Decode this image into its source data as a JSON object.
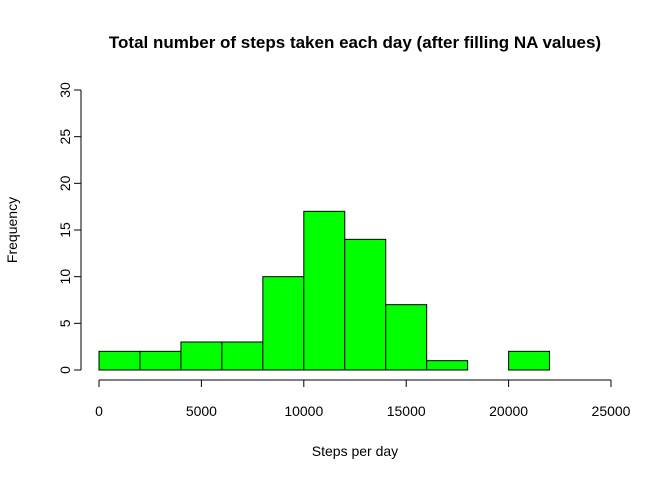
{
  "chart_data": {
    "type": "bar",
    "title": "Total number of steps taken each day (after filling NA values)",
    "xlabel": "Steps per day",
    "ylabel": "Frequency",
    "bar_color": "#00ff00",
    "border_color": "#000000",
    "bins": [
      {
        "start": 0,
        "end": 2000,
        "count": 2
      },
      {
        "start": 2000,
        "end": 4000,
        "count": 2
      },
      {
        "start": 4000,
        "end": 6000,
        "count": 3
      },
      {
        "start": 6000,
        "end": 8000,
        "count": 3
      },
      {
        "start": 8000,
        "end": 10000,
        "count": 10
      },
      {
        "start": 10000,
        "end": 12000,
        "count": 17
      },
      {
        "start": 12000,
        "end": 14000,
        "count": 14
      },
      {
        "start": 14000,
        "end": 16000,
        "count": 7
      },
      {
        "start": 16000,
        "end": 18000,
        "count": 1
      },
      {
        "start": 18000,
        "end": 20000,
        "count": 0
      },
      {
        "start": 20000,
        "end": 22000,
        "count": 2
      }
    ],
    "xlim": [
      0,
      25000
    ],
    "ylim": [
      0,
      30
    ],
    "xticks": [
      "0",
      "5000",
      "10000",
      "15000",
      "20000",
      "25000"
    ],
    "yticks": [
      "0",
      "5",
      "10",
      "15",
      "20",
      "25",
      "30"
    ],
    "grid": false
  }
}
